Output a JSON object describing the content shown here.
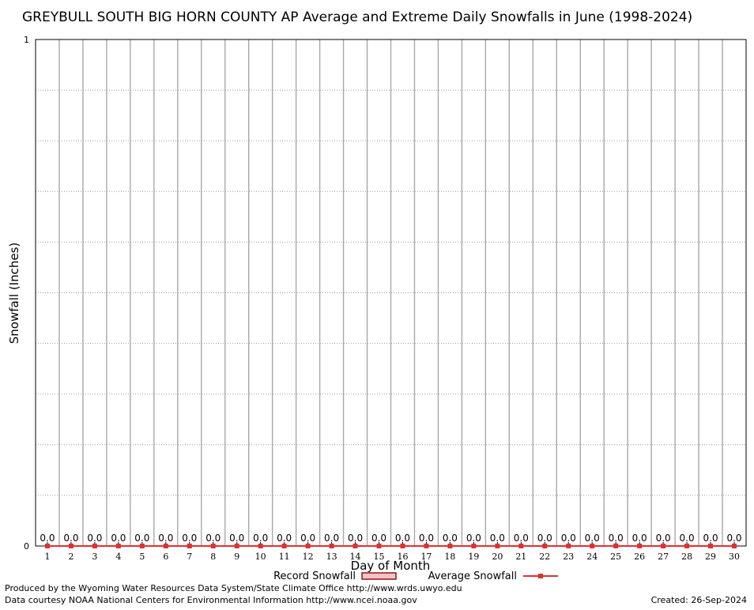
{
  "chart_data": {
    "type": "bar",
    "title": "GREYBULL SOUTH BIG HORN COUNTY AP Average and Extreme Daily Snowfalls in June (1998-2024)",
    "xlabel": "Day of Month",
    "ylabel": "Snowfall (Inches)",
    "ylim": [
      0,
      1
    ],
    "y_ticks": [
      "0",
      "1"
    ],
    "categories": [
      "1",
      "2",
      "3",
      "4",
      "5",
      "6",
      "7",
      "8",
      "9",
      "10",
      "11",
      "12",
      "13",
      "14",
      "15",
      "16",
      "17",
      "18",
      "19",
      "20",
      "21",
      "22",
      "23",
      "24",
      "25",
      "26",
      "27",
      "28",
      "29",
      "30"
    ],
    "series": [
      {
        "name": "Record Snowfall",
        "type": "bar",
        "color": "#cc2222",
        "values": [
          0,
          0,
          0,
          0,
          0,
          0,
          0,
          0,
          0,
          0,
          0,
          0,
          0,
          0,
          0,
          0,
          0,
          0,
          0,
          0,
          0,
          0,
          0,
          0,
          0,
          0,
          0,
          0,
          0,
          0
        ]
      },
      {
        "name": "Average Snowfall",
        "type": "line",
        "color": "#e03030",
        "values": [
          0,
          0,
          0,
          0,
          0,
          0,
          0,
          0,
          0,
          0,
          0,
          0,
          0,
          0,
          0,
          0,
          0,
          0,
          0,
          0,
          0,
          0,
          0,
          0,
          0,
          0,
          0,
          0,
          0,
          0
        ]
      }
    ],
    "data_labels": [
      "0.0",
      "0.0",
      "0.0",
      "0.0",
      "0.0",
      "0.0",
      "0.0",
      "0.0",
      "0.0",
      "0.0",
      "0.0",
      "0.0",
      "0.0",
      "0.0",
      "0.0",
      "0.0",
      "0.0",
      "0.0",
      "0.0",
      "0.0",
      "0.0",
      "0.0",
      "0.0",
      "0.0",
      "0.0",
      "0.0",
      "0.0",
      "0.0",
      "0.0",
      "0.0"
    ],
    "grid": true,
    "legend_position": "bottom"
  },
  "footer": {
    "produced_by": "Produced by the Wyoming Water Resources Data System/State Climate Office http://www.wrds.uwyo.edu",
    "data_courtesy": "Data courtesy NOAA National Centers for Environmental Information http://www.ncei.noaa.gov",
    "created": "Created: 26-Sep-2024"
  }
}
